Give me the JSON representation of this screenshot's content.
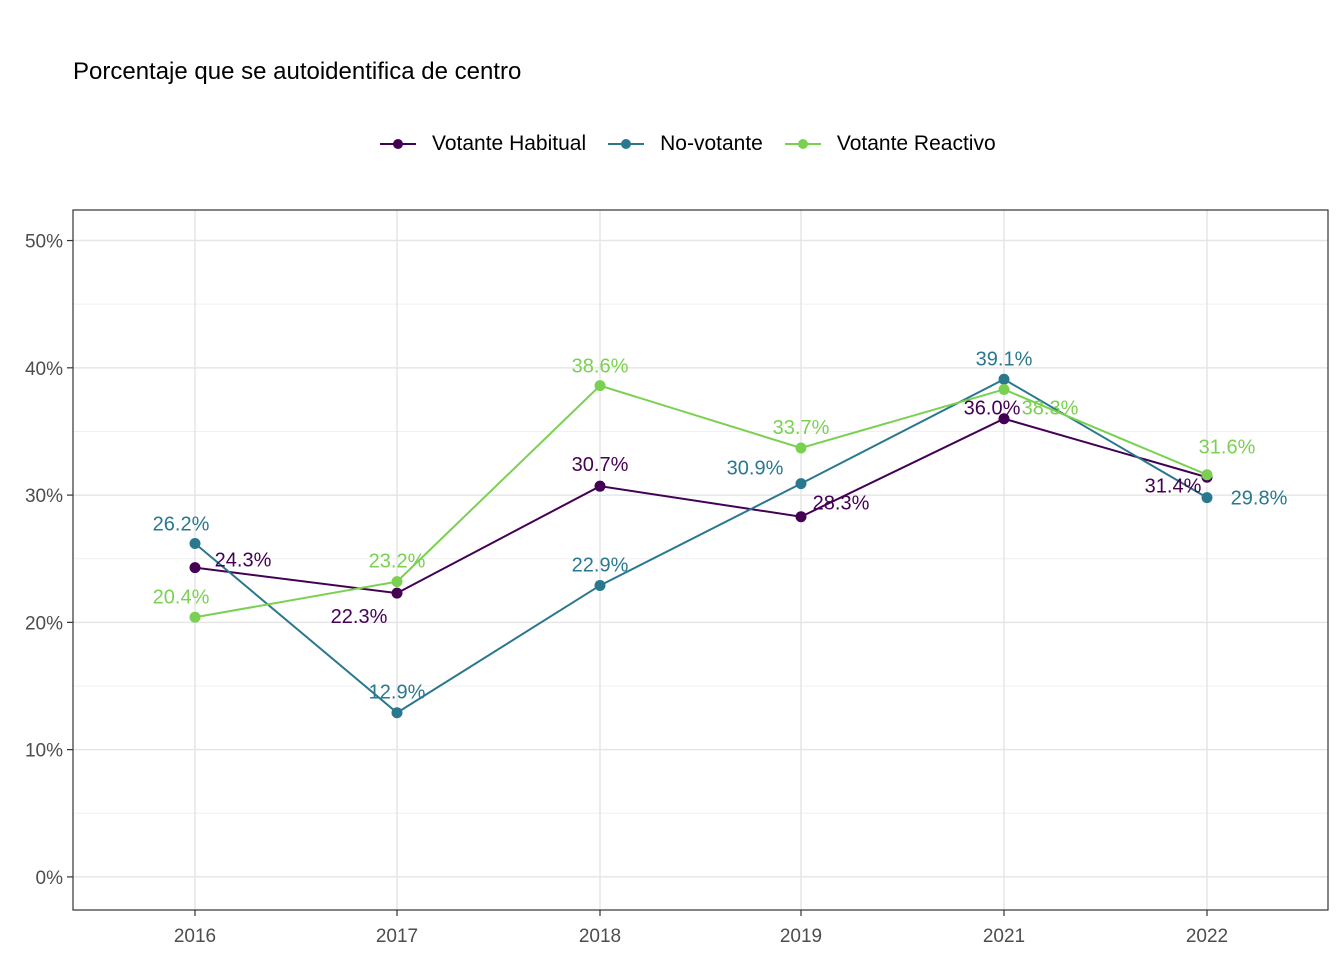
{
  "chart_data": {
    "type": "line",
    "title": "Porcentaje que se autoidentifica de centro",
    "xlabel": "",
    "ylabel": "",
    "x": [
      "2016",
      "2017",
      "2018",
      "2019",
      "2021",
      "2022"
    ],
    "ylim": [
      0,
      50
    ],
    "yticks": [
      0,
      10,
      20,
      30,
      40,
      50
    ],
    "ytick_labels": [
      "0%",
      "10%",
      "20%",
      "30%",
      "40%",
      "50%"
    ],
    "grid": true,
    "legend_position": "top",
    "series": [
      {
        "name": "Votante Habitual",
        "color": "#440154",
        "values": [
          24.3,
          22.3,
          30.7,
          28.3,
          36.0,
          31.4
        ],
        "labels": [
          "24.3%",
          "22.3%",
          "30.7%",
          "28.3%",
          "36.0%",
          "31.4%"
        ]
      },
      {
        "name": "No-votante",
        "color": "#21908C",
        "values": [
          26.2,
          12.9,
          22.9,
          30.9,
          39.1,
          29.8
        ],
        "labels": [
          "26.2%",
          "12.9%",
          "22.9%",
          "30.9%",
          "39.1%",
          "29.8%"
        ]
      },
      {
        "name": "Votante Reactivo",
        "color": "#7AD151",
        "values": [
          20.4,
          23.2,
          38.6,
          33.7,
          38.3,
          31.6
        ],
        "labels": [
          "20.4%",
          "23.2%",
          "38.6%",
          "33.7%",
          "38.3%",
          "31.6%"
        ]
      }
    ]
  }
}
